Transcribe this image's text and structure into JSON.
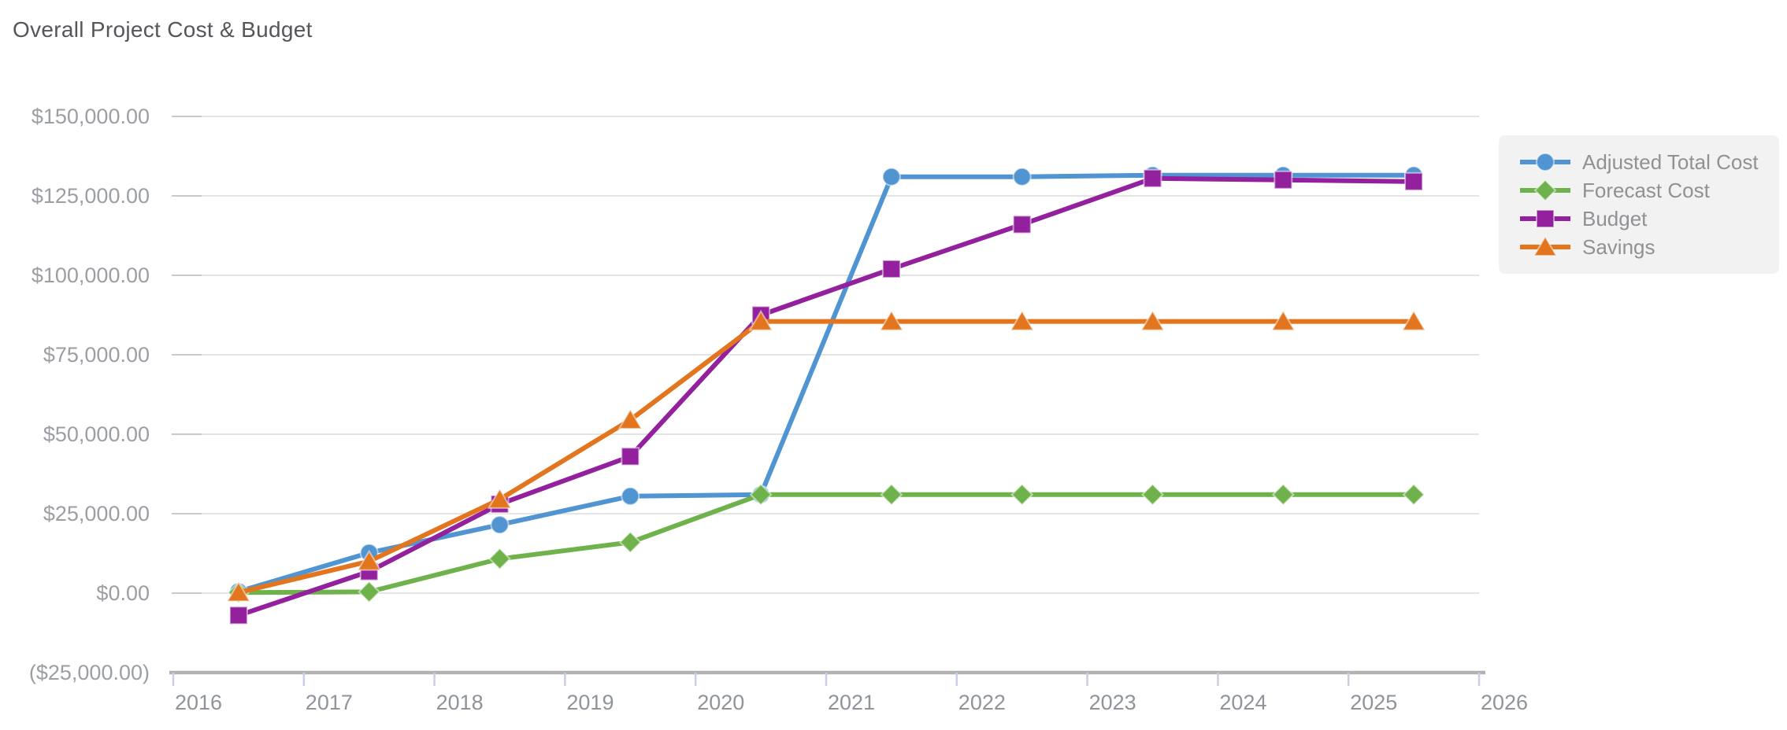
{
  "chart_data": {
    "type": "line",
    "title": "Overall Project Cost & Budget",
    "x": [
      2016.5,
      2017.5,
      2018.5,
      2019.5,
      2020.5,
      2021.5,
      2022.5,
      2023.5,
      2024.5,
      2025.5
    ],
    "x_axis": {
      "range": [
        2016,
        2026
      ],
      "tick_labels": [
        "2016",
        "2017",
        "2018",
        "2019",
        "2020",
        "2021",
        "2022",
        "2023",
        "2024",
        "2025",
        "2026"
      ]
    },
    "y_axis": {
      "range": [
        -25000,
        150000
      ],
      "tick_step": 25000,
      "tick_values": [
        150000,
        125000,
        100000,
        75000,
        50000,
        25000,
        0,
        -25000
      ],
      "tick_labels": [
        "$150,000.00",
        "$125,000.00",
        "$100,000.00",
        "$75,000.00",
        "$50,000.00",
        "$25,000.00",
        "$0.00",
        "($25,000.00)"
      ]
    },
    "grid": true,
    "legend": {
      "position": "right"
    },
    "series": [
      {
        "name": "Adjusted Total Cost",
        "marker": "circle",
        "color": "#5094d2",
        "values": [
          500,
          12700,
          21500,
          30500,
          31000,
          131000,
          131000,
          131500,
          131500,
          131500
        ]
      },
      {
        "name": "Forecast Cost",
        "marker": "diamond",
        "color": "#6fb24c",
        "values": [
          200,
          400,
          10800,
          16000,
          31000,
          31000,
          31000,
          31000,
          31000,
          31000
        ]
      },
      {
        "name": "Budget",
        "marker": "square",
        "color": "#93209d",
        "values": [
          -7000,
          6800,
          28000,
          43000,
          87500,
          102000,
          116000,
          130500,
          130000,
          129500
        ]
      },
      {
        "name": "Savings",
        "marker": "triangle",
        "color": "#e2751d",
        "values": [
          200,
          10000,
          29500,
          54500,
          85500,
          85500,
          85500,
          85500,
          85500,
          85500
        ]
      }
    ]
  },
  "colors": {
    "background": "#ffffff",
    "title_text": "#54565a",
    "axis_text": "#9b9ea3",
    "x_axis_text": "#8f939a",
    "gridline": "#e4e4e4",
    "gridline_dash": "#c9c9c9",
    "axis_line": "#b2b2b2",
    "x_tick": "#c7d0e2",
    "legend_bg": "#f2f2f2",
    "legend_text": "#8f9194"
  }
}
